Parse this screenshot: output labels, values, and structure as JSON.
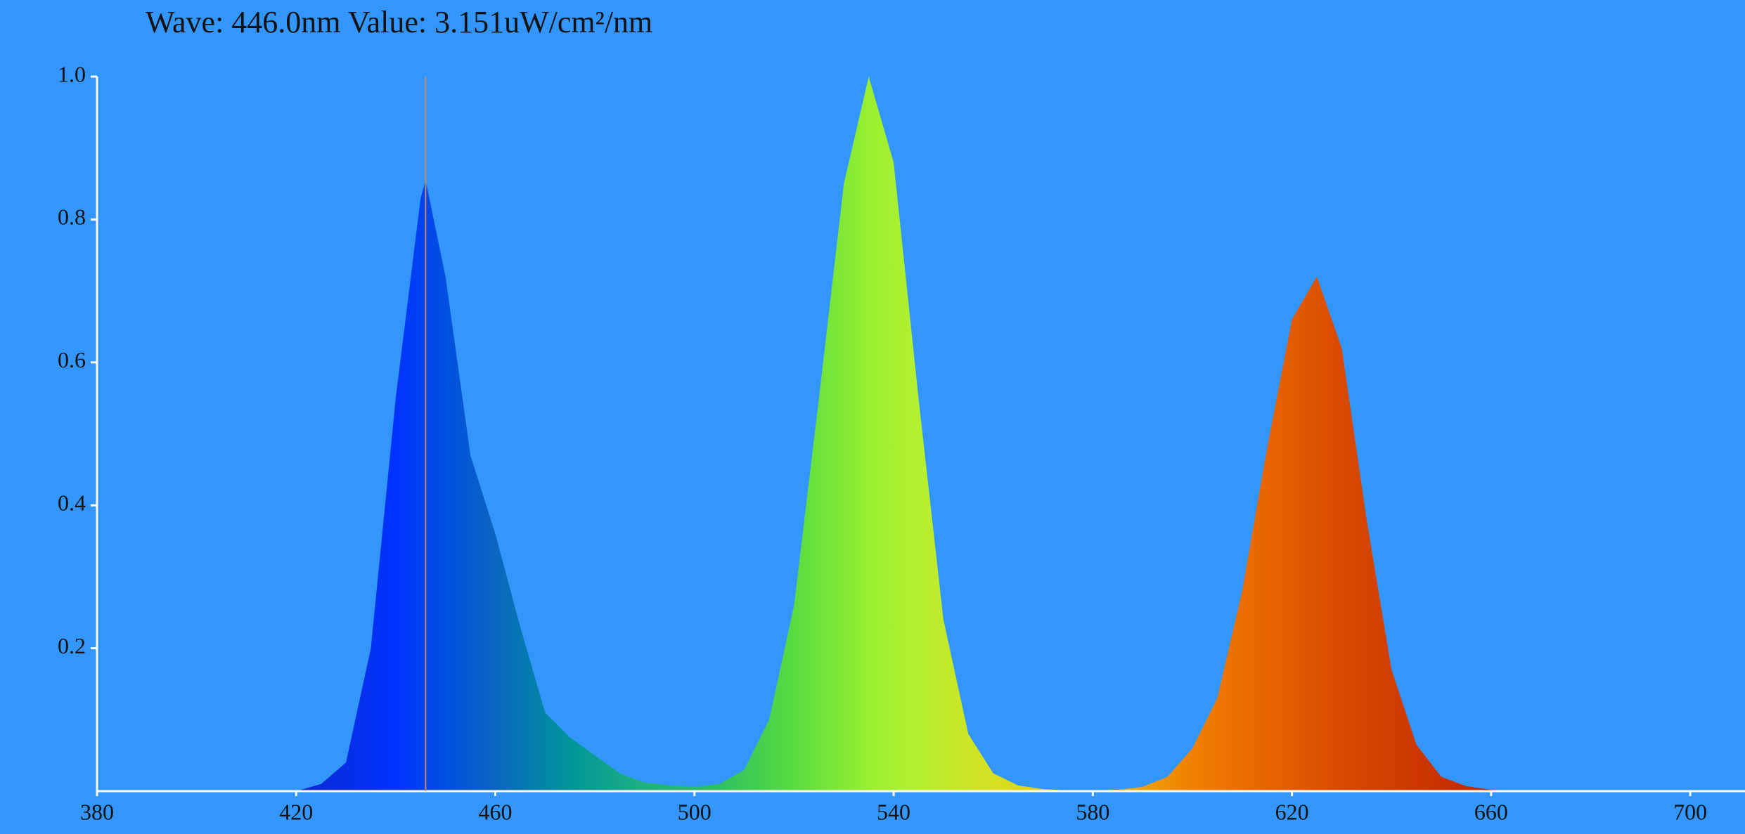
{
  "chart_data": {
    "type": "area",
    "annotation": "Wave: 446.0nm Value: 3.151uW/cm²/nm",
    "cursor": 446,
    "background": "#3396fc",
    "axis_color": "#ffffff",
    "x": [
      415,
      420,
      425,
      430,
      435,
      440,
      445,
      446,
      450,
      455,
      460,
      465,
      470,
      475,
      480,
      485,
      490,
      495,
      500,
      505,
      510,
      515,
      520,
      525,
      530,
      535,
      540,
      545,
      550,
      555,
      560,
      565,
      570,
      575,
      580,
      585,
      590,
      595,
      600,
      605,
      610,
      615,
      620,
      625,
      630,
      635,
      640,
      645,
      650,
      655,
      660,
      665
    ],
    "values": [
      0,
      0,
      0.01,
      0.04,
      0.2,
      0.55,
      0.83,
      0.855,
      0.72,
      0.47,
      0.36,
      0.23,
      0.11,
      0.075,
      0.05,
      0.025,
      0.012,
      0.008,
      0.006,
      0.01,
      0.03,
      0.1,
      0.26,
      0.55,
      0.85,
      1.0,
      0.88,
      0.55,
      0.24,
      0.08,
      0.025,
      0.008,
      0.003,
      0.001,
      0.001,
      0.002,
      0.006,
      0.02,
      0.06,
      0.13,
      0.28,
      0.48,
      0.66,
      0.72,
      0.62,
      0.38,
      0.17,
      0.065,
      0.02,
      0.007,
      0.002,
      0
    ],
    "xlim": [
      380,
      711
    ],
    "xticks": [
      380,
      420,
      460,
      500,
      540,
      580,
      620,
      660,
      700
    ],
    "ylim": [
      0,
      1
    ],
    "yticks": [
      0.2,
      0.4,
      0.6,
      0.8,
      {
        "value": 1,
        "label": "1.0"
      }
    ]
  }
}
